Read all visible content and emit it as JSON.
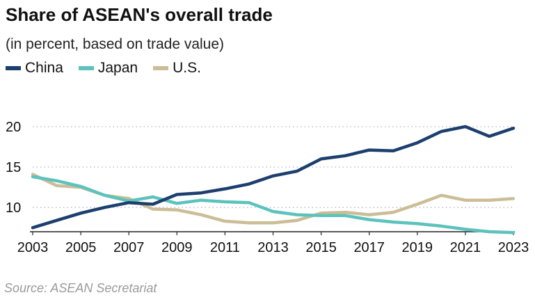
{
  "header": {
    "title": "Share of ASEAN's overall trade",
    "subtitle": "(in percent, based on trade value)"
  },
  "legend": [
    {
      "label": "China",
      "color": "#1c3f6e"
    },
    {
      "label": "Japan",
      "color": "#5cc3bc"
    },
    {
      "label": "U.S.",
      "color": "#cbbd96"
    }
  ],
  "source": "Source: ASEAN Secretariat",
  "chart_data": {
    "type": "line",
    "x": [
      2003,
      2004,
      2005,
      2006,
      2007,
      2008,
      2009,
      2010,
      2011,
      2012,
      2013,
      2014,
      2015,
      2016,
      2017,
      2018,
      2019,
      2020,
      2021,
      2022,
      2023
    ],
    "series": [
      {
        "name": "China",
        "color": "#1c3f6e",
        "values": [
          7.5,
          8.4,
          9.3,
          10.0,
          10.6,
          10.4,
          11.6,
          11.8,
          12.3,
          12.9,
          13.9,
          14.5,
          16.0,
          16.4,
          17.1,
          17.0,
          18.0,
          19.4,
          20.0,
          18.8,
          19.8
        ]
      },
      {
        "name": "Japan",
        "color": "#5cc3bc",
        "values": [
          13.8,
          13.3,
          12.6,
          11.5,
          10.8,
          11.3,
          10.5,
          10.9,
          10.7,
          10.6,
          9.5,
          9.1,
          9.0,
          9.0,
          8.5,
          8.2,
          8.0,
          7.7,
          7.3,
          7.0,
          6.9
        ]
      },
      {
        "name": "U.S.",
        "color": "#cbbd96",
        "values": [
          14.1,
          12.7,
          12.5,
          11.5,
          11.1,
          9.8,
          9.7,
          9.1,
          8.3,
          8.1,
          8.1,
          8.4,
          9.3,
          9.4,
          9.1,
          9.4,
          10.4,
          11.5,
          10.9,
          10.9,
          11.1
        ]
      }
    ],
    "x_ticks": [
      "2003",
      "2005",
      "2007",
      "2009",
      "2011",
      "2013",
      "2015",
      "2017",
      "2019",
      "2021",
      "2023"
    ],
    "y_ticks": [
      "10",
      "15",
      "20"
    ],
    "xlim": [
      2003,
      2023
    ],
    "ylim": [
      7,
      21.2
    ],
    "grid": "horizontal-dotted",
    "legend_position": "top-left"
  }
}
